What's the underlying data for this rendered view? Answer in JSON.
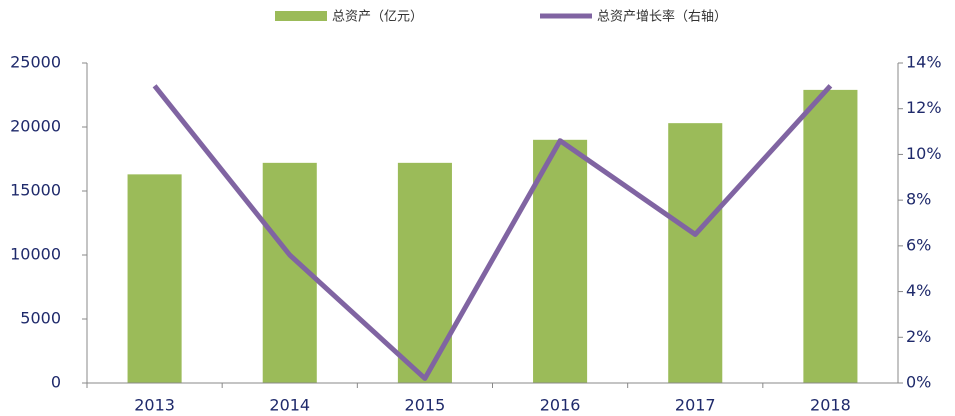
{
  "chart_data": {
    "type": "bar_line",
    "categories": [
      "2013",
      "2014",
      "2015",
      "2016",
      "2017",
      "2018"
    ],
    "series": [
      {
        "name": "总资产（亿元）",
        "color": "#9bbb59",
        "type": "bar",
        "values": [
          16300,
          17200,
          17200,
          19000,
          20300,
          22900
        ]
      },
      {
        "name": "总资产增长率（右轴）",
        "color": "#8064a2",
        "type": "line",
        "axis": "y2",
        "values": [
          13.0,
          5.6,
          0.2,
          10.6,
          6.5,
          13.0
        ]
      }
    ],
    "ylim": [
      0,
      25000
    ],
    "yticks": [
      0,
      5000,
      10000,
      15000,
      20000,
      25000
    ],
    "y2lim": [
      0,
      14
    ],
    "y2ticks": [
      {
        "value": 0,
        "label": "0%"
      },
      {
        "value": 2,
        "label": "2%"
      },
      {
        "value": 4,
        "label": "4%"
      },
      {
        "value": 6,
        "label": "6%"
      },
      {
        "value": 8,
        "label": "8%"
      },
      {
        "value": 10,
        "label": "10%"
      },
      {
        "value": 12,
        "label": "12%"
      },
      {
        "value": 14,
        "label": "14%"
      }
    ],
    "legend": "top"
  }
}
